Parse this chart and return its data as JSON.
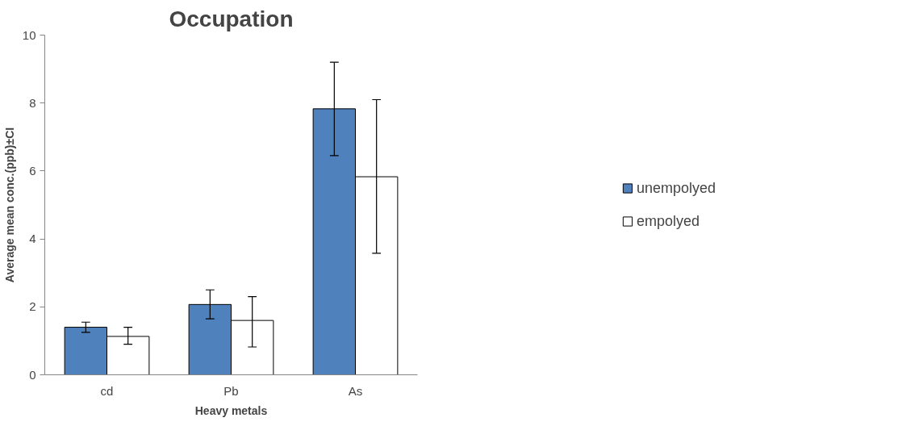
{
  "chart_data": {
    "type": "bar",
    "title": "Occupation",
    "xlabel": "Heavy metals",
    "ylabel": "Average mean conc.(ppb)±CI",
    "categories": [
      "cd",
      "Pb",
      "As"
    ],
    "series": [
      {
        "name": "unempolyed",
        "color": "#4f81bd",
        "values": [
          1.4,
          2.07,
          7.83
        ],
        "errors": [
          [
            1.25,
            1.55
          ],
          [
            1.65,
            2.5
          ],
          [
            6.45,
            9.2
          ]
        ]
      },
      {
        "name": "empolyed",
        "color": "#ffffff",
        "values": [
          1.13,
          1.6,
          5.83
        ],
        "errors": [
          [
            0.9,
            1.4
          ],
          [
            0.82,
            2.3
          ],
          [
            3.58,
            8.1
          ]
        ]
      }
    ],
    "ylim": [
      0,
      10
    ],
    "yticks": [
      0,
      2,
      4,
      6,
      8,
      10
    ],
    "grid": false,
    "legend": "right"
  }
}
